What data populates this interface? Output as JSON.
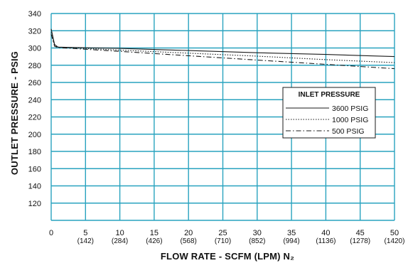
{
  "chart_data": {
    "type": "line",
    "xlabel": "FLOW RATE - SCFM (LPM) N₂",
    "ylabel": "OUTLET PRESSURE - PSIG",
    "xlim": [
      0,
      50
    ],
    "ylim": [
      100,
      340
    ],
    "yticks": [
      120,
      140,
      160,
      180,
      200,
      220,
      240,
      260,
      280,
      300,
      320,
      340
    ],
    "xticks": [
      {
        "value": 0,
        "label": "0",
        "sub": ""
      },
      {
        "value": 5,
        "label": "5",
        "sub": "(142)"
      },
      {
        "value": 10,
        "label": "10",
        "sub": "(284)"
      },
      {
        "value": 15,
        "label": "15",
        "sub": "(426)"
      },
      {
        "value": 20,
        "label": "20",
        "sub": "(568)"
      },
      {
        "value": 25,
        "label": "25",
        "sub": "(710)"
      },
      {
        "value": 30,
        "label": "30",
        "sub": "(852)"
      },
      {
        "value": 35,
        "label": "35",
        "sub": "(994)"
      },
      {
        "value": 40,
        "label": "40",
        "sub": "(1136)"
      },
      {
        "value": 45,
        "label": "45",
        "sub": "(1278)"
      },
      {
        "value": 50,
        "label": "50",
        "sub": "(1420)"
      }
    ],
    "grid": true,
    "legend_title": "INLET PRESSURE",
    "legend_position": "middle-right",
    "series": [
      {
        "name": "3600 PSIG",
        "dash": "solid",
        "x": [
          0,
          0.5,
          1,
          10,
          20,
          30,
          40,
          50
        ],
        "values": [
          322,
          304,
          301,
          299.5,
          297,
          294.5,
          292.5,
          290
        ]
      },
      {
        "name": "1000 PSIG",
        "dash": "dotted",
        "x": [
          0,
          0.5,
          1,
          10,
          20,
          30,
          40,
          50
        ],
        "values": [
          318,
          303,
          301,
          297.5,
          294,
          290.5,
          286.5,
          283
        ]
      },
      {
        "name": "500 PSIG",
        "dash": "dashdot",
        "x": [
          0,
          0.5,
          1,
          10,
          20,
          30,
          40,
          50
        ],
        "values": [
          316,
          302,
          300.5,
          296,
          291,
          286,
          281,
          276
        ]
      }
    ]
  },
  "colors": {
    "grid": "#29a3bf",
    "line": "#1a1a1a",
    "text": "#111111"
  }
}
